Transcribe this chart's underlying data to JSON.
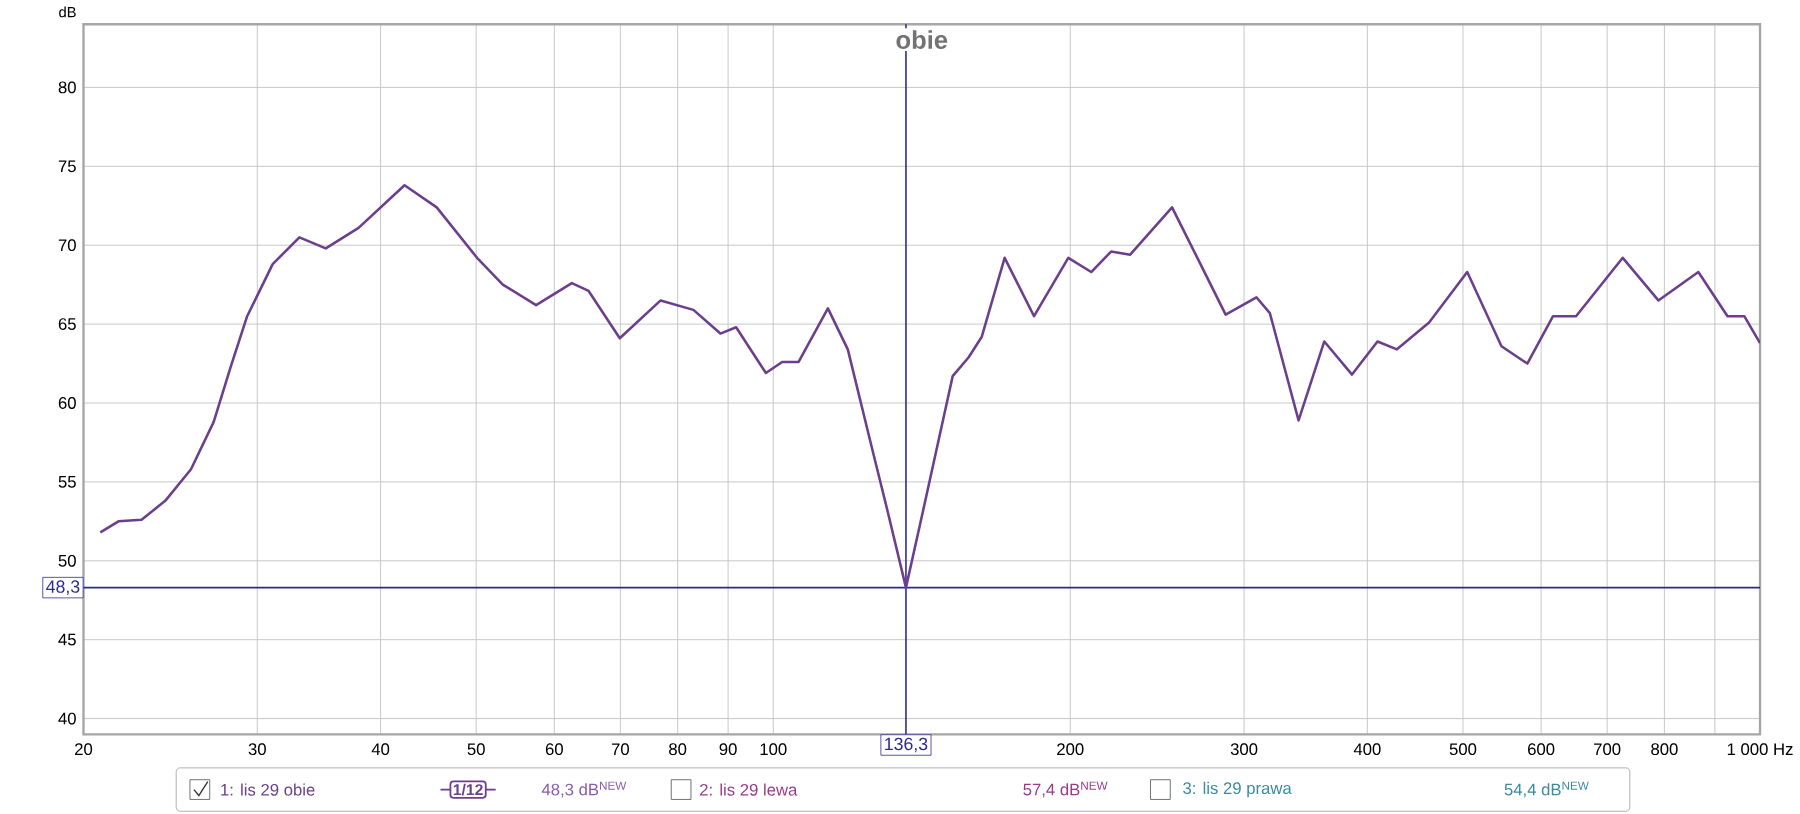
{
  "chart_data": {
    "type": "line",
    "title": "obie",
    "ylabel": "dB",
    "x": [
      20.8,
      21.7,
      22.9,
      24.2,
      25.7,
      27.1,
      28.2,
      29.3,
      31.1,
      33.1,
      35.2,
      38.0,
      42.3,
      45.6,
      50.1,
      53.2,
      57.5,
      62.5,
      65.0,
      69.9,
      76.9,
      83.0,
      88.4,
      91.7,
      98.3,
      102.1,
      106.1,
      113.6,
      119.0,
      125.5,
      130.4,
      136.3,
      142.0,
      152.0,
      157.8,
      162.7,
      171.6,
      183.8,
      199.1,
      210,
      220,
      230,
      253.6,
      271,
      287.4,
      308.8,
      318.6,
      340.7,
      361.8,
      386,
      409.6,
      428.6,
      462,
      505,
      547,
      581,
      617,
      651,
      726,
      789,
      866,
      927,
      964,
      1000
    ],
    "series": [
      {
        "name": "1: lis 29 obie",
        "color": "#6b3f8c",
        "values": [
          51.8,
          52.5,
          52.6,
          53.8,
          55.8,
          58.8,
          62.3,
          65.5,
          68.8,
          70.5,
          69.8,
          71.1,
          73.8,
          72.4,
          69.2,
          67.5,
          66.2,
          67.6,
          67.1,
          64.1,
          66.5,
          65.9,
          64.4,
          64.8,
          61.9,
          62.6,
          62.6,
          66.0,
          63.4,
          57.5,
          53.3,
          48.3,
          53.3,
          61.7,
          62.9,
          64.2,
          69.2,
          65.5,
          69.2,
          68.3,
          69.6,
          69.4,
          72.4,
          68.8,
          65.6,
          66.7,
          65.7,
          58.9,
          63.9,
          61.8,
          63.9,
          63.4,
          65.1,
          68.3,
          63.6,
          62.5,
          65.5,
          65.5,
          69.2,
          66.5,
          68.3,
          65.5,
          65.5,
          63.8
        ]
      }
    ],
    "log": "x",
    "xlim": [
      20,
      1000
    ],
    "ylim": [
      39,
      84
    ],
    "xticks": [
      20,
      30,
      40,
      50,
      60,
      70,
      80,
      90,
      100,
      200,
      300,
      400,
      500,
      600,
      700,
      800,
      {
        "value": 900,
        "label": null
      },
      {
        "value": 1000,
        "label": "1 000 Hz"
      }
    ],
    "yticks": [
      40,
      45,
      50,
      55,
      60,
      65,
      70,
      75,
      80
    ],
    "grid": true,
    "legend": "bottom",
    "ref_lines": [
      {
        "axis": "x",
        "value": 136.3,
        "label": "136,3",
        "color": "#2b2b8c"
      },
      {
        "axis": "y",
        "value": 48.3,
        "label": "48,3",
        "color": "#2b2b8c"
      }
    ],
    "annotations": [
      "1/12",
      "48,3 dB$^{NEW}$",
      "2: lis 29 lewa",
      "57,4 dB$^{NEW}$",
      "3: lis 29 prawa",
      "54,4 dB$^{NEW}$"
    ]
  }
}
